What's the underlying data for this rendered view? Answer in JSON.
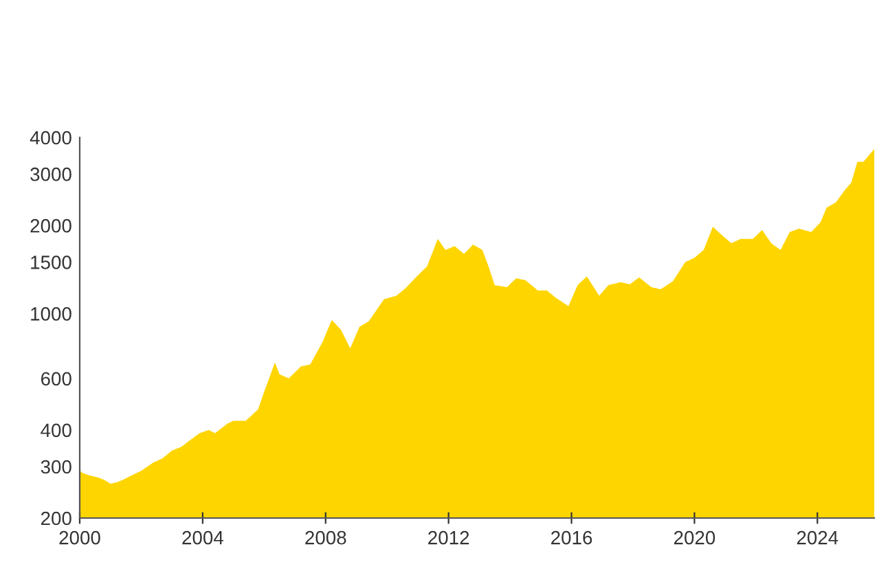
{
  "chart_data": {
    "type": "area",
    "color": "#ffd500",
    "log": "y",
    "x": [
      2000.0,
      2000.1,
      2000.3,
      2000.6,
      2000.8,
      2001.0,
      2001.2,
      2001.4,
      2001.7,
      2002.0,
      2002.4,
      2002.7,
      2003.0,
      2003.3,
      2003.6,
      2003.9,
      2004.2,
      2004.4,
      2004.8,
      2005.0,
      2005.4,
      2005.8,
      2006.0,
      2006.35,
      2006.5,
      2006.8,
      2007.2,
      2007.5,
      2007.9,
      2008.2,
      2008.5,
      2008.8,
      2009.1,
      2009.4,
      2009.9,
      2010.3,
      2010.6,
      2011.0,
      2011.3,
      2011.65,
      2011.9,
      2012.2,
      2012.5,
      2012.8,
      2013.1,
      2013.3,
      2013.5,
      2013.9,
      2014.2,
      2014.5,
      2014.9,
      2015.2,
      2015.5,
      2015.9,
      2016.2,
      2016.5,
      2016.9,
      2017.2,
      2017.6,
      2017.9,
      2018.2,
      2018.6,
      2018.9,
      2019.3,
      2019.7,
      2020.0,
      2020.3,
      2020.6,
      2020.9,
      2021.2,
      2021.5,
      2021.9,
      2022.2,
      2022.5,
      2022.8,
      2023.1,
      2023.4,
      2023.8,
      2024.1,
      2024.3,
      2024.6,
      2024.9,
      2025.1,
      2025.3,
      2025.5,
      2025.7,
      2025.85
    ],
    "values": [
      290,
      285,
      280,
      275,
      270,
      262,
      265,
      270,
      280,
      290,
      310,
      320,
      340,
      350,
      370,
      390,
      400,
      390,
      420,
      430,
      430,
      470,
      540,
      680,
      620,
      600,
      660,
      670,
      800,
      950,
      880,
      760,
      900,
      940,
      1120,
      1150,
      1220,
      1350,
      1450,
      1800,
      1650,
      1700,
      1600,
      1720,
      1650,
      1450,
      1250,
      1230,
      1320,
      1300,
      1200,
      1200,
      1130,
      1060,
      1250,
      1340,
      1150,
      1250,
      1280,
      1260,
      1330,
      1230,
      1210,
      1290,
      1500,
      1550,
      1650,
      1980,
      1850,
      1740,
      1800,
      1800,
      1930,
      1740,
      1650,
      1900,
      1950,
      1900,
      2050,
      2300,
      2400,
      2650,
      2800,
      3300,
      3300,
      3500,
      3650
    ],
    "xlim": [
      2000,
      2025.85
    ],
    "ylim": [
      200,
      4000
    ],
    "xticks": [
      2000,
      2004,
      2008,
      2012,
      2016,
      2020,
      2024
    ],
    "yticks": [
      200,
      300,
      400,
      600,
      1000,
      1500,
      2000,
      3000,
      4000
    ],
    "grid": false
  }
}
